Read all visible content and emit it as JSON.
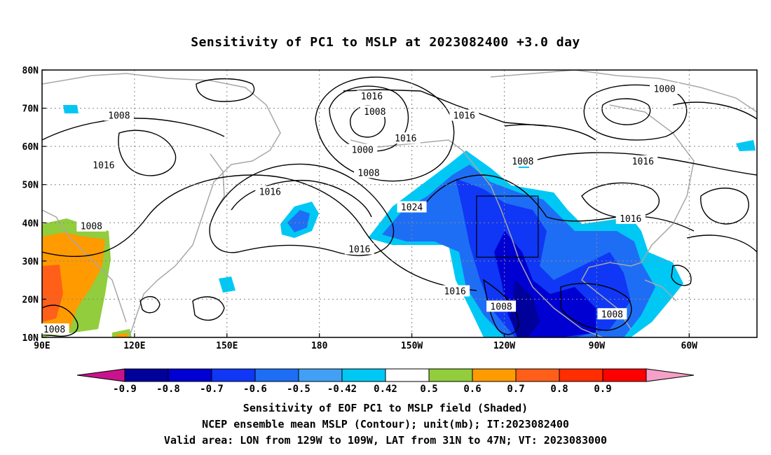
{
  "title": "Sensitivity of PC1 to MSLP at 2023082400 +3.0 day",
  "captions": [
    "Sensitivity of EOF PC1 to MSLP field (Shaded)",
    "NCEP ensemble mean MSLP (Contour); unit(mb); IT:2023082400",
    "Valid area: LON from 129W to 109W, LAT from 31N to 47N; VT: 2023083000"
  ],
  "chart_data": {
    "type": "heatmap",
    "title": "Sensitivity of PC1 to MSLP at 2023082400 +3.0 day",
    "x_ticks": [
      "90E",
      "120E",
      "150E",
      "180",
      "150W",
      "120W",
      "90W",
      "60W"
    ],
    "x_tick_lon": [
      90,
      120,
      150,
      180,
      210,
      240,
      270,
      300
    ],
    "y_ticks": [
      "10N",
      "20N",
      "30N",
      "40N",
      "50N",
      "60N",
      "70N",
      "80N"
    ],
    "y_tick_lat": [
      10,
      20,
      30,
      40,
      50,
      60,
      70,
      80
    ],
    "xlim_lon": [
      90,
      322
    ],
    "ylim_lat": [
      10,
      80
    ],
    "grid": true,
    "valid_box": {
      "lon": [
        231,
        251
      ],
      "lat": [
        31,
        47
      ]
    },
    "colorbar": {
      "labels": [
        "-0.9",
        "-0.8",
        "-0.7",
        "-0.6",
        "-0.5",
        "-0.42",
        "0.42",
        "0.5",
        "0.6",
        "0.7",
        "0.8",
        "0.9"
      ],
      "colors": [
        "#c8148c",
        "#00009b",
        "#0000d2",
        "#0f37f5",
        "#1e6ef5",
        "#41a0f5",
        "#00c8f5",
        "#ffffff",
        "#91cd3c",
        "#ff9b00",
        "#ff5f19",
        "#ff2d00",
        "#ff0000",
        "#f5a0c8"
      ]
    },
    "contour_labels": [
      {
        "text": "1016",
        "lon": 197,
        "lat": 73
      },
      {
        "text": "1008",
        "lon": 198,
        "lat": 69
      },
      {
        "text": "1016",
        "lon": 227,
        "lat": 68
      },
      {
        "text": "1000",
        "lon": 292,
        "lat": 75
      },
      {
        "text": "1008",
        "lon": 115,
        "lat": 68
      },
      {
        "text": "1016",
        "lon": 208,
        "lat": 62
      },
      {
        "text": "1000",
        "lon": 194,
        "lat": 59
      },
      {
        "text": "1008",
        "lon": 246,
        "lat": 56
      },
      {
        "text": "1016",
        "lon": 285,
        "lat": 56
      },
      {
        "text": "1016",
        "lon": 110,
        "lat": 55
      },
      {
        "text": "1008",
        "lon": 196,
        "lat": 53
      },
      {
        "text": "1016",
        "lon": 164,
        "lat": 48
      },
      {
        "text": "1024",
        "lon": 210,
        "lat": 44
      },
      {
        "text": "1016",
        "lon": 281,
        "lat": 41
      },
      {
        "text": "1008",
        "lon": 106,
        "lat": 39
      },
      {
        "text": "1016",
        "lon": 193,
        "lat": 33
      },
      {
        "text": "1016",
        "lon": 224,
        "lat": 22
      },
      {
        "text": "1008",
        "lon": 239,
        "lat": 18
      },
      {
        "text": "1008",
        "lon": 275,
        "lat": 16
      },
      {
        "text": "1008",
        "lon": 94,
        "lat": 12
      }
    ],
    "shaded_regions_note": "Negative sensitivity (blue shades) over NE Pacific/western North America and Gulf of Mexico; positive (green/orange) over South/Southeast Asia"
  }
}
